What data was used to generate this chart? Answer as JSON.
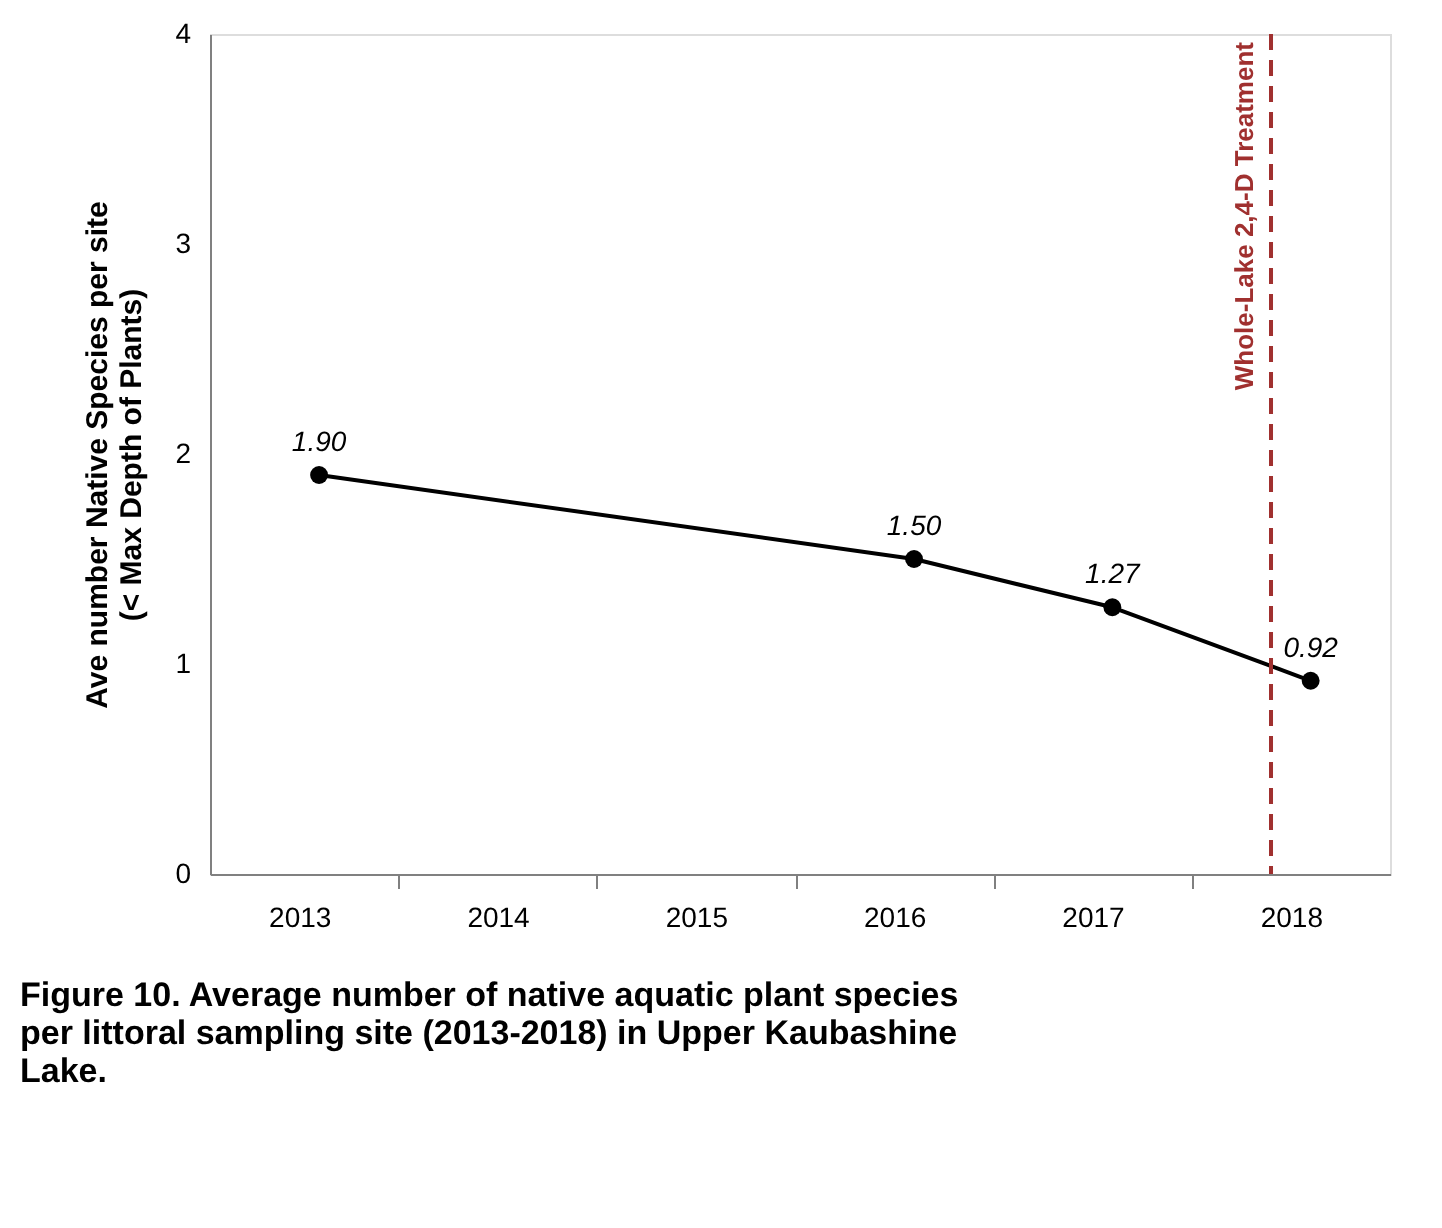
{
  "chart_data": {
    "type": "line",
    "ylabel": "Ave number Native Species per site\n(< Max Depth of Plants)",
    "x": [
      2013.1,
      2016.1,
      2017.1,
      2018.1
    ],
    "series": [
      {
        "color": "#000000",
        "values": [
          1.9,
          1.5,
          1.27,
          0.92
        ]
      }
    ],
    "value_labels": [
      "1.90",
      "1.50",
      "1.27",
      "0.92"
    ],
    "marker": "circle",
    "line_style": "solid",
    "xlim": [
      2012.55,
      2018.5
    ],
    "xticks": [
      2013,
      {
        "value": 2013.5,
        "label": null
      },
      2014,
      {
        "value": 2014.5,
        "label": null
      },
      2015,
      {
        "value": 2015.5,
        "label": null
      },
      2016,
      {
        "value": 2016.5,
        "label": null
      },
      2017,
      {
        "value": 2017.5,
        "label": null
      },
      2018
    ],
    "ylim": [
      0,
      4
    ],
    "yticks": [
      0,
      1,
      2,
      3,
      4
    ],
    "grid": false,
    "ref_lines": [
      {
        "axis": "x",
        "value": 2017.9,
        "label": "Whole-Lake 2,4-D Treatment",
        "color": "#a0302f",
        "line_style": "dashed"
      }
    ],
    "annotations": [
      "Figure 10.  Average number of native aquatic plant species per littoral sampling site (2013-2018) in Upper Kaubashine Lake."
    ]
  }
}
